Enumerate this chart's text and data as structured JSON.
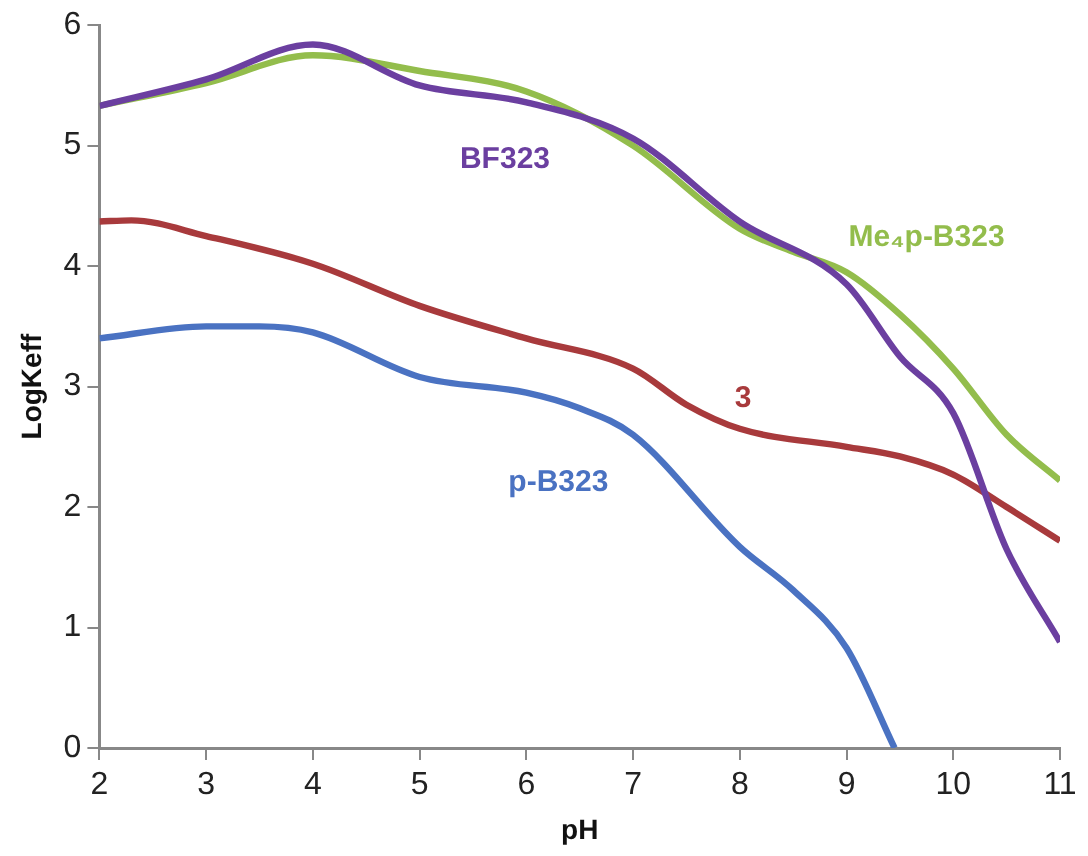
{
  "chart_data": {
    "type": "line",
    "xlabel": "pH",
    "ylabel": "LogKeff",
    "xlim": [
      2,
      11
    ],
    "xticks": [
      2,
      3,
      4,
      5,
      6,
      7,
      8,
      9,
      10,
      11
    ],
    "ylim": [
      0,
      6
    ],
    "yticks": [
      0,
      1,
      2,
      3,
      4,
      5,
      6
    ],
    "grid": false,
    "legend": false,
    "marker": "none",
    "line_style": "solid",
    "series": [
      {
        "name": "BF323",
        "color": "#6b3fa0",
        "x": [
          2,
          3,
          4,
          5,
          6,
          7,
          8,
          9,
          9.5,
          10,
          10.5,
          11
        ],
        "values": [
          5.33,
          5.55,
          5.84,
          5.5,
          5.36,
          5.06,
          4.37,
          3.85,
          3.25,
          2.78,
          1.65,
          0.88
        ]
      },
      {
        "name": "Me₄p-B323",
        "color": "#93bd4c",
        "x": [
          2,
          3,
          4,
          5,
          6,
          7,
          8,
          8.5,
          9,
          9.5,
          10,
          10.5,
          11
        ],
        "values": [
          5.33,
          5.52,
          5.75,
          5.62,
          5.45,
          5.0,
          4.31,
          4.12,
          3.95,
          3.6,
          3.15,
          2.6,
          2.22
        ]
      },
      {
        "name": "3",
        "color": "#a83a3c",
        "x": [
          2,
          2.3,
          3,
          4,
          5,
          6,
          7,
          7.5,
          8,
          9,
          9.5,
          10,
          10.5,
          11
        ],
        "values": [
          4.37,
          4.38,
          4.25,
          4.02,
          3.67,
          3.4,
          3.15,
          2.85,
          2.65,
          2.5,
          2.42,
          2.27,
          2.0,
          1.72
        ]
      },
      {
        "name": "p-B323",
        "color": "#4a72c2",
        "x": [
          2,
          3,
          3.5,
          4,
          5,
          6,
          6.5,
          7,
          8,
          8.5,
          9,
          9.45
        ],
        "values": [
          3.4,
          3.5,
          3.5,
          3.45,
          3.08,
          2.95,
          2.82,
          2.6,
          1.67,
          1.31,
          0.83,
          0
        ]
      }
    ]
  }
}
